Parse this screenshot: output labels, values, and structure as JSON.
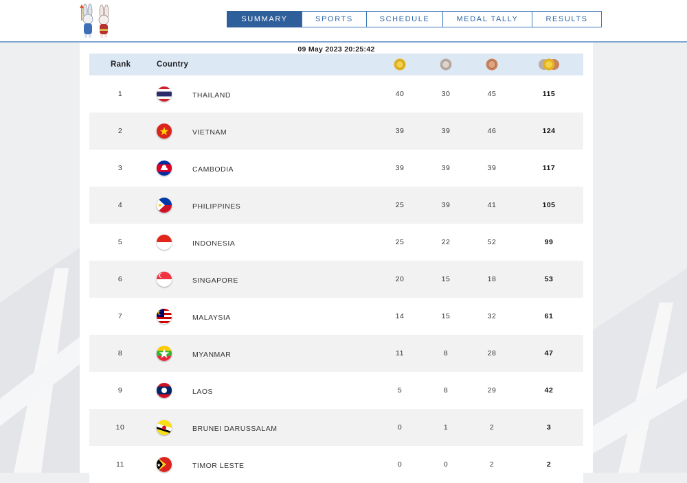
{
  "header": {
    "nav": [
      {
        "label": "SUMMARY",
        "active": true
      },
      {
        "label": "SPORTS",
        "active": false
      },
      {
        "label": "SCHEDULE",
        "active": false
      },
      {
        "label": "MEDAL TALLY",
        "active": false
      },
      {
        "label": "RESULTS",
        "active": false
      }
    ],
    "mascot_icon": "rabbit-mascot-icon"
  },
  "tally": {
    "timestamp": "09 May 2023  20:25:42",
    "columns": {
      "rank": "Rank",
      "country": "Country",
      "gold_icon": "gold-medal-icon",
      "silver_icon": "silver-medal-icon",
      "bronze_icon": "bronze-medal-icon",
      "total_icon": "total-medals-icon"
    },
    "rows": [
      {
        "rank": "1",
        "country": "THAILAND",
        "flag_icon": "thailand-flag-icon",
        "gold": "40",
        "silver": "30",
        "bronze": "45",
        "total": "115"
      },
      {
        "rank": "2",
        "country": "VIETNAM",
        "flag_icon": "vietnam-flag-icon",
        "gold": "39",
        "silver": "39",
        "bronze": "46",
        "total": "124"
      },
      {
        "rank": "3",
        "country": "CAMBODIA",
        "flag_icon": "cambodia-flag-icon",
        "gold": "39",
        "silver": "39",
        "bronze": "39",
        "total": "117"
      },
      {
        "rank": "4",
        "country": "PHILIPPINES",
        "flag_icon": "philippines-flag-icon",
        "gold": "25",
        "silver": "39",
        "bronze": "41",
        "total": "105"
      },
      {
        "rank": "5",
        "country": "INDONESIA",
        "flag_icon": "indonesia-flag-icon",
        "gold": "25",
        "silver": "22",
        "bronze": "52",
        "total": "99"
      },
      {
        "rank": "6",
        "country": "SINGAPORE",
        "flag_icon": "singapore-flag-icon",
        "gold": "20",
        "silver": "15",
        "bronze": "18",
        "total": "53"
      },
      {
        "rank": "7",
        "country": "MALAYSIA",
        "flag_icon": "malaysia-flag-icon",
        "gold": "14",
        "silver": "15",
        "bronze": "32",
        "total": "61"
      },
      {
        "rank": "8",
        "country": "MYANMAR",
        "flag_icon": "myanmar-flag-icon",
        "gold": "11",
        "silver": "8",
        "bronze": "28",
        "total": "47"
      },
      {
        "rank": "9",
        "country": "LAOS",
        "flag_icon": "laos-flag-icon",
        "gold": "5",
        "silver": "8",
        "bronze": "29",
        "total": "42"
      },
      {
        "rank": "10",
        "country": "BRUNEI DARUSSALAM",
        "flag_icon": "brunei-flag-icon",
        "gold": "0",
        "silver": "1",
        "bronze": "2",
        "total": "3"
      },
      {
        "rank": "11",
        "country": "TIMOR LESTE",
        "flag_icon": "timor-leste-flag-icon",
        "gold": "0",
        "silver": "0",
        "bronze": "2",
        "total": "2"
      }
    ]
  },
  "colors": {
    "nav_active": "#2f5f9b",
    "nav_border": "#3a76b8",
    "header_row": "#dde8f5",
    "alt_row": "#f2f2f2",
    "gold": "#e3b21f",
    "silver": "#b9aca2",
    "bronze": "#c9825e"
  }
}
